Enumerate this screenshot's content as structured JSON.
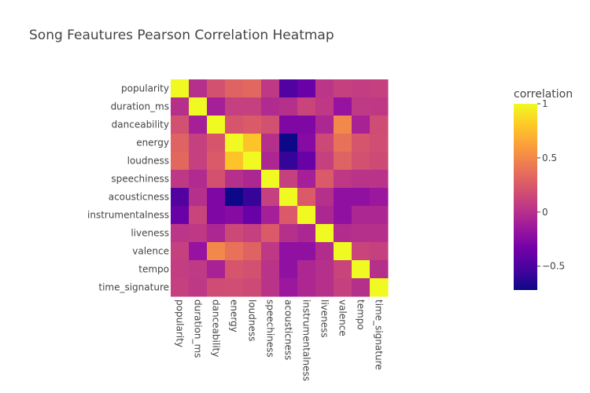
{
  "chart_data": {
    "type": "heatmap",
    "title": "Song Feautures Pearson Correlation Heatmap",
    "xlabel": "",
    "ylabel": "",
    "x": [
      "popularity",
      "duration_ms",
      "danceability",
      "energy",
      "loudness",
      "speechiness",
      "acousticness",
      "instrumentalness",
      "liveness",
      "valence",
      "tempo",
      "time_signature"
    ],
    "y": [
      "popularity",
      "duration_ms",
      "danceability",
      "energy",
      "loudness",
      "speechiness",
      "acousticness",
      "instrumentalness",
      "liveness",
      "valence",
      "tempo",
      "time_signature"
    ],
    "z": [
      [
        1.0,
        0.0,
        0.2,
        0.3,
        0.33,
        0.05,
        -0.48,
        -0.38,
        0.03,
        0.1,
        0.08,
        0.1
      ],
      [
        0.0,
        1.0,
        -0.1,
        0.1,
        0.1,
        -0.03,
        0.0,
        0.12,
        0.05,
        -0.18,
        0.06,
        0.05
      ],
      [
        0.2,
        -0.1,
        1.0,
        0.22,
        0.25,
        0.2,
        -0.28,
        -0.28,
        -0.05,
        0.5,
        -0.08,
        0.17
      ],
      [
        0.3,
        0.1,
        0.22,
        1.0,
        0.78,
        0.0,
        -0.72,
        -0.25,
        0.15,
        0.38,
        0.22,
        0.18
      ],
      [
        0.33,
        0.1,
        0.25,
        0.78,
        1.0,
        -0.05,
        -0.58,
        -0.38,
        0.1,
        0.3,
        0.2,
        0.16
      ],
      [
        0.05,
        -0.03,
        0.2,
        0.0,
        -0.05,
        1.0,
        0.1,
        -0.1,
        0.25,
        0.05,
        0.02,
        0.02
      ],
      [
        -0.48,
        0.0,
        -0.28,
        -0.72,
        -0.58,
        0.1,
        1.0,
        0.25,
        0.0,
        -0.2,
        -0.2,
        -0.15
      ],
      [
        -0.38,
        0.12,
        -0.28,
        -0.25,
        -0.38,
        -0.1,
        0.25,
        1.0,
        -0.05,
        -0.2,
        -0.05,
        -0.05
      ],
      [
        0.03,
        0.05,
        -0.05,
        0.15,
        0.1,
        0.25,
        0.0,
        -0.05,
        1.0,
        -0.02,
        0.0,
        0.0
      ],
      [
        0.1,
        -0.18,
        0.5,
        0.38,
        0.3,
        0.05,
        -0.2,
        -0.2,
        -0.02,
        1.0,
        0.12,
        0.1
      ],
      [
        0.08,
        0.06,
        -0.08,
        0.22,
        0.2,
        0.02,
        -0.2,
        -0.05,
        0.0,
        0.12,
        1.0,
        0.0
      ],
      [
        0.1,
        0.05,
        0.17,
        0.18,
        0.16,
        0.02,
        -0.15,
        -0.05,
        0.0,
        0.1,
        0.0,
        1.0
      ]
    ],
    "zmin": -0.72,
    "zmax": 1.0,
    "colorscale": "plasma",
    "colorbar": {
      "title": "correlation",
      "ticks": [
        1,
        0.5,
        0,
        -0.5
      ],
      "tick_labels": [
        "1",
        "0.5",
        "0",
        "−0.5"
      ]
    }
  }
}
